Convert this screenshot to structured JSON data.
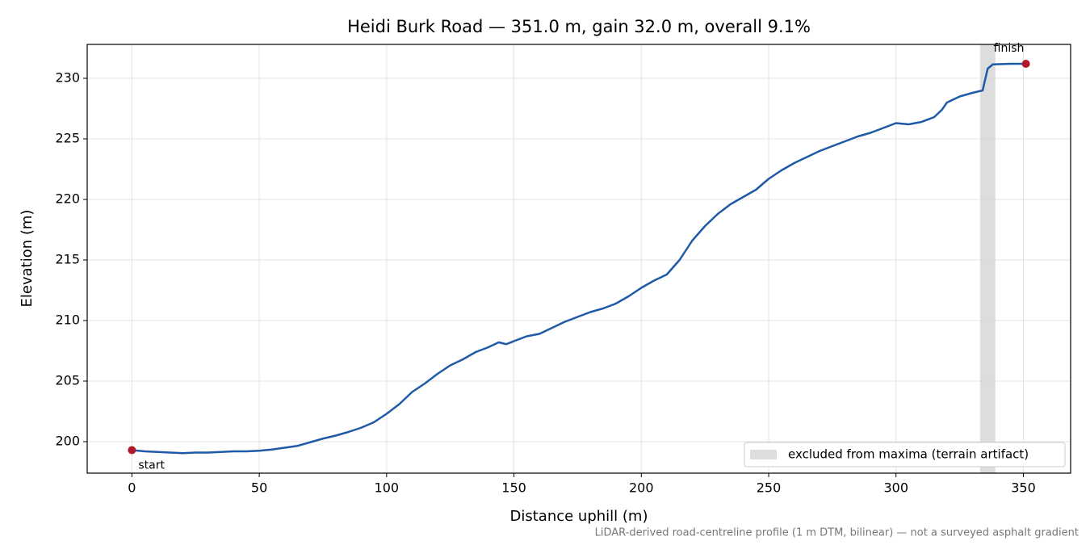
{
  "chart_data": {
    "type": "line",
    "title": "Heidi Burk Road — 351.0 m, gain 32.0 m, overall 9.1%",
    "xlabel": "Distance uphill (m)",
    "ylabel": "Elevation (m)",
    "note": "LiDAR-derived road-centreline profile (1 m DTM, bilinear) — not a surveyed asphalt gradient",
    "x": [
      0,
      5,
      10,
      15,
      20,
      25,
      30,
      35,
      40,
      45,
      50,
      55,
      60,
      65,
      70,
      75,
      80,
      85,
      90,
      95,
      100,
      105,
      110,
      115,
      120,
      125,
      130,
      135,
      140,
      144,
      147,
      150,
      155,
      160,
      165,
      170,
      175,
      180,
      185,
      190,
      195,
      200,
      205,
      210,
      215,
      220,
      225,
      230,
      235,
      240,
      245,
      250,
      255,
      260,
      265,
      270,
      275,
      280,
      285,
      290,
      295,
      300,
      305,
      310,
      315,
      318,
      320,
      325,
      330,
      334,
      336,
      338,
      345,
      351
    ],
    "series": [
      {
        "color": "#1f5aa8",
        "values": [
          199.3,
          199.2,
          199.15,
          199.1,
          199.05,
          199.1,
          199.1,
          199.15,
          199.2,
          199.2,
          199.25,
          199.35,
          199.5,
          199.65,
          199.95,
          200.25,
          200.5,
          200.8,
          201.15,
          201.6,
          202.3,
          203.1,
          204.1,
          204.8,
          205.6,
          206.3,
          206.8,
          207.4,
          207.8,
          208.2,
          208.05,
          208.3,
          208.7,
          208.9,
          209.4,
          209.9,
          210.3,
          210.7,
          211.0,
          211.4,
          212.0,
          212.7,
          213.3,
          213.8,
          215.0,
          216.6,
          217.8,
          218.8,
          219.6,
          220.2,
          220.8,
          221.7,
          222.4,
          223.0,
          223.5,
          224.0,
          224.4,
          224.8,
          225.2,
          225.5,
          225.9,
          226.3,
          226.2,
          226.4,
          226.8,
          227.4,
          228.0,
          228.5,
          228.8,
          229.0,
          230.8,
          231.15,
          231.2,
          231.2
        ]
      }
    ],
    "points": [
      {
        "label": "start",
        "x": 0,
        "y": 199.3,
        "color": "#b2182b"
      },
      {
        "label": "finish",
        "x": 351,
        "y": 231.2,
        "color": "#b2182b"
      }
    ],
    "span": {
      "label": "excluded from maxima (terrain artifact)",
      "x": [
        333,
        339
      ],
      "color": "#d4d4d4"
    },
    "xlim": [
      -17.55,
      368.55
    ],
    "ylim": [
      197.4,
      232.8
    ],
    "xticks": [
      0,
      50,
      100,
      150,
      200,
      250,
      300,
      350
    ],
    "yticks": [
      200,
      205,
      210,
      215,
      220,
      225,
      230
    ],
    "grid": true,
    "legend": "lower right"
  }
}
